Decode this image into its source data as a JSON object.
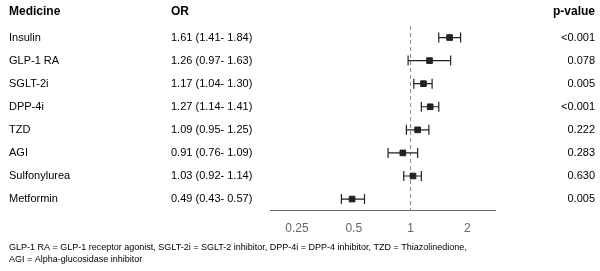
{
  "chart_data": {
    "type": "forest",
    "column_headers": [
      "Medicine",
      "OR",
      "p-value"
    ],
    "categories": [
      "Insulin",
      "GLP-1 RA",
      "SGLT-2i",
      "DPP-4i",
      "TZD",
      "AGI",
      "Sulfonylurea",
      "Metformin"
    ],
    "values": [
      1.61,
      1.26,
      1.17,
      1.27,
      1.09,
      0.91,
      1.03,
      0.49
    ],
    "value_labels": [
      "1.61 (1.41- 1.84)",
      "1.26 (0.97- 1.63)",
      "1.17 (1.04- 1.30)",
      "1.27 (1.14- 1.41)",
      "1.09 (0.95- 1.25)",
      "0.91 (0.76- 1.09)",
      "1.03 (0.92- 1.14)",
      "0.49 (0.43- 0.57)"
    ],
    "ci_low": [
      1.41,
      0.97,
      1.04,
      1.14,
      0.95,
      0.76,
      0.92,
      0.43
    ],
    "ci_high": [
      1.84,
      1.63,
      1.3,
      1.41,
      1.25,
      1.09,
      1.14,
      0.57
    ],
    "p_values": [
      "<0.001",
      "0.078",
      "0.005",
      "<0.001",
      "0.222",
      "0.283",
      "0.630",
      "0.005"
    ],
    "xlim": [
      0.18,
      2.8
    ],
    "xticks": [
      0.25,
      0.5,
      1,
      2
    ],
    "log": "x",
    "reference_line": {
      "value": 1,
      "color": "#888888"
    },
    "color": "#222222",
    "marker": "square",
    "grid": false,
    "tick_labels": "x",
    "footnote": "GLP-1 RA = GLP-1 receptor agonist, SGLT-2i = SGLT-2 inhibitor, DPP-4i = DPP-4 inhibitor, TZD = Thiazolinedione,\nAGI = Alpha-glucosidase inhibitor"
  }
}
